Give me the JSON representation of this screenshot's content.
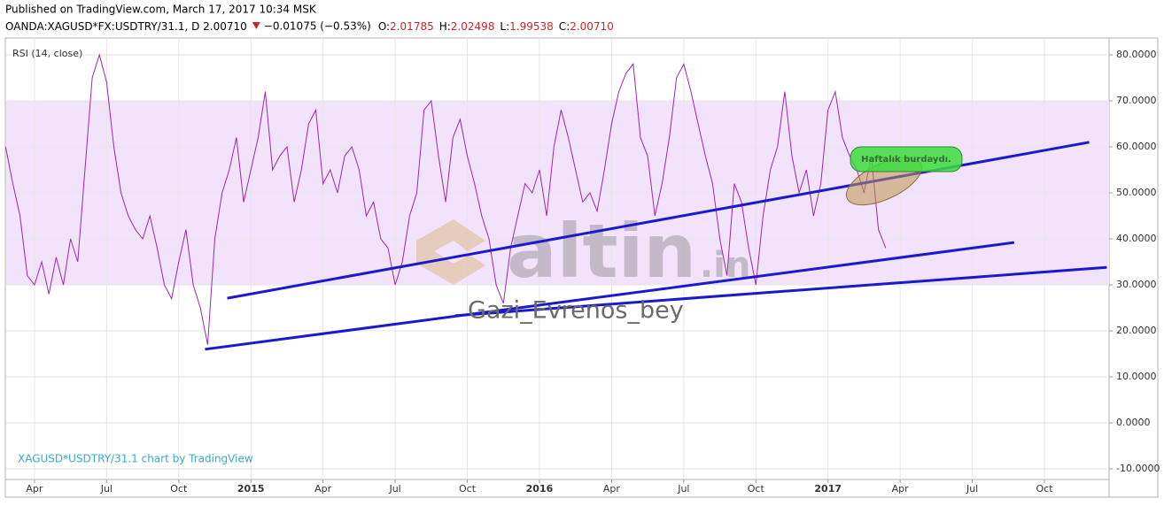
{
  "header": {
    "published": "Published on TradingView.com, March 17, 2017 10:34 MSK",
    "symbol": "OANDA:XAGUSD*FX:USDTRY/31.1, D",
    "last": "2.00710",
    "change": "−0.01075 (−0.53%)",
    "ohlc": [
      {
        "label": "O:",
        "value": "2.01785"
      },
      {
        "label": "H:",
        "value": "2.02498"
      },
      {
        "label": "L:",
        "value": "1.99538"
      },
      {
        "label": "C:",
        "value": "2.00710"
      }
    ]
  },
  "chart_data": {
    "type": "line",
    "indicator": "RSI (14, close)",
    "attribution": "XAGUSD*USDTRY/31.1 chart by TradingView",
    "watermark": [
      "altin",
      ".in"
    ],
    "author": "Gazi_Evrenos_bey",
    "annotation": "Haftalık burdaydı.",
    "xlim": [
      2014.152,
      2017.974
    ],
    "ylim": [
      -12.3,
      83.65
    ],
    "xticks": [
      {
        "value": 2014.25,
        "label": "Apr"
      },
      {
        "value": 2014.5,
        "label": "Jul"
      },
      {
        "value": 2014.75,
        "label": "Oct"
      },
      2015,
      {
        "value": 2015.25,
        "label": "Apr"
      },
      {
        "value": 2015.5,
        "label": "Jul"
      },
      {
        "value": 2015.75,
        "label": "Oct"
      },
      2016,
      {
        "value": 2016.25,
        "label": "Apr"
      },
      {
        "value": 2016.5,
        "label": "Jul"
      },
      {
        "value": 2016.75,
        "label": "Oct"
      },
      2017,
      {
        "value": 2017.25,
        "label": "Apr"
      },
      {
        "value": 2017.5,
        "label": "Jul"
      },
      {
        "value": 2017.75,
        "label": "Oct"
      }
    ],
    "yticks": [
      {
        "value": 80,
        "label": "80.0000"
      },
      {
        "value": 70,
        "label": "70.0000"
      },
      {
        "value": 60,
        "label": "60.0000"
      },
      {
        "value": 50,
        "label": "50.0000"
      },
      {
        "value": 40,
        "label": "40.0000"
      },
      {
        "value": 30,
        "label": "30.0000"
      },
      {
        "value": 20,
        "label": "20.0000"
      },
      {
        "value": 10,
        "label": "10.0000"
      },
      {
        "value": 0,
        "label": "0.0000"
      },
      {
        "value": -10,
        "label": "-10.0000"
      }
    ],
    "grid": true,
    "band": [
      30,
      70
    ],
    "band_color": "#f3e2fb",
    "x": [
      2014.15,
      2014.175,
      2014.2,
      2014.225,
      2014.25,
      2014.275,
      2014.3,
      2014.325,
      2014.35,
      2014.375,
      2014.4,
      2014.425,
      2014.45,
      2014.475,
      2014.5,
      2014.525,
      2014.55,
      2014.575,
      2014.6,
      2014.625,
      2014.65,
      2014.675,
      2014.7,
      2014.725,
      2014.75,
      2014.775,
      2014.8,
      2014.825,
      2014.85,
      2014.875,
      2014.9,
      2014.925,
      2014.95,
      2014.975,
      2015.0,
      2015.025,
      2015.05,
      2015.075,
      2015.1,
      2015.125,
      2015.15,
      2015.175,
      2015.2,
      2015.225,
      2015.25,
      2015.275,
      2015.3,
      2015.325,
      2015.35,
      2015.375,
      2015.4,
      2015.425,
      2015.45,
      2015.475,
      2015.5,
      2015.525,
      2015.55,
      2015.575,
      2015.6,
      2015.625,
      2015.65,
      2015.675,
      2015.7,
      2015.725,
      2015.75,
      2015.775,
      2015.8,
      2015.825,
      2015.85,
      2015.875,
      2015.9,
      2015.925,
      2015.95,
      2015.975,
      2016.0,
      2016.025,
      2016.05,
      2016.075,
      2016.1,
      2016.125,
      2016.15,
      2016.175,
      2016.2,
      2016.225,
      2016.25,
      2016.275,
      2016.3,
      2016.325,
      2016.35,
      2016.375,
      2016.4,
      2016.425,
      2016.45,
      2016.475,
      2016.5,
      2016.525,
      2016.55,
      2016.575,
      2016.6,
      2016.625,
      2016.65,
      2016.675,
      2016.7,
      2016.725,
      2016.75,
      2016.775,
      2016.8,
      2016.825,
      2016.85,
      2016.875,
      2016.9,
      2016.925,
      2016.95,
      2016.975,
      2017.0,
      2017.025,
      2017.05,
      2017.075,
      2017.1,
      2017.125,
      2017.15,
      2017.175,
      2017.2
    ],
    "series": [
      {
        "name": "RSI",
        "color": "#9c27b0",
        "values": [
          60,
          52,
          45,
          32,
          30,
          35,
          28,
          36,
          30,
          40,
          35,
          55,
          75,
          80,
          74,
          60,
          50,
          45,
          42,
          40,
          45,
          38,
          30,
          27,
          35,
          42,
          30,
          25,
          17,
          40,
          50,
          55,
          62,
          48,
          55,
          62,
          72,
          55,
          58,
          60,
          48,
          55,
          65,
          68,
          52,
          55,
          50,
          58,
          60,
          55,
          45,
          48,
          40,
          38,
          30,
          35,
          45,
          50,
          68,
          70,
          58,
          48,
          62,
          66,
          58,
          52,
          45,
          40,
          30,
          26,
          38,
          45,
          52,
          50,
          55,
          45,
          60,
          68,
          62,
          55,
          48,
          50,
          46,
          55,
          65,
          72,
          76,
          78,
          62,
          58,
          45,
          52,
          62,
          75,
          78,
          72,
          65,
          58,
          52,
          40,
          32,
          52,
          48,
          38,
          30,
          45,
          55,
          60,
          72,
          58,
          50,
          55,
          45,
          52,
          68,
          72,
          62,
          58,
          55,
          50,
          58,
          42,
          38
        ]
      }
    ],
    "trend_color": "#1a1acc",
    "trend_lines": [
      {
        "x": [
          2014.918,
          2017.905
        ],
        "y": [
          27.1,
          61
        ]
      },
      {
        "x": [
          2014.841,
          2017.645
        ],
        "y": [
          16,
          39.2
        ]
      },
      {
        "x": [
          2015.708,
          2017.966
        ],
        "y": [
          23.3,
          33.8
        ]
      }
    ]
  }
}
